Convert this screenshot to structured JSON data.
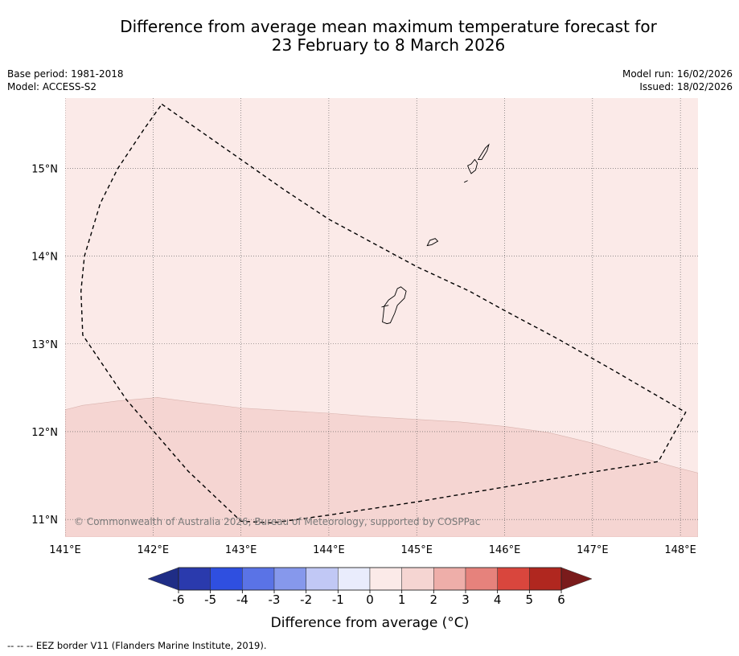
{
  "header": {
    "title_line1": "Difference from average mean maximum temperature forecast for",
    "title_line2": "23 February to 8 March 2026",
    "base_period": "Base period: 1981-2018",
    "model": "Model: ACCESS-S2",
    "model_run": "Model run: 16/02/2026",
    "issued": "Issued: 18/02/2026"
  },
  "map": {
    "lon_range": [
      141.0,
      148.2
    ],
    "lat_range": [
      10.8,
      15.8
    ],
    "lon_ticks": [
      141,
      142,
      143,
      144,
      145,
      146,
      147,
      148
    ],
    "lon_labels": [
      "141°E",
      "142°E",
      "143°E",
      "144°E",
      "145°E",
      "146°E",
      "147°E",
      "148°E"
    ],
    "lat_ticks": [
      11,
      12,
      13,
      14,
      15
    ],
    "lat_labels": [
      "11°N",
      "12°N",
      "13°N",
      "14°N",
      "15°N"
    ],
    "background_category": "0 to 1",
    "background_color": "#fbeae8",
    "warm_region_category": "1 to 2",
    "warm_region_color": "#f5d5d2",
    "warm_region_boundary": [
      [
        141.0,
        12.25
      ],
      [
        141.2,
        12.3
      ],
      [
        141.6,
        12.35
      ],
      [
        142.05,
        12.39
      ],
      [
        142.5,
        12.33
      ],
      [
        143.0,
        12.27
      ],
      [
        143.5,
        12.24
      ],
      [
        144.0,
        12.21
      ],
      [
        144.5,
        12.17
      ],
      [
        145.0,
        12.14
      ],
      [
        145.5,
        12.11
      ],
      [
        146.0,
        12.06
      ],
      [
        146.5,
        11.99
      ],
      [
        147.0,
        11.87
      ],
      [
        147.5,
        11.72
      ],
      [
        148.0,
        11.58
      ],
      [
        148.2,
        11.53
      ]
    ],
    "eez_border": [
      [
        142.1,
        15.73
      ],
      [
        142.5,
        15.45
      ],
      [
        143.0,
        15.1
      ],
      [
        143.5,
        14.75
      ],
      [
        144.0,
        14.42
      ],
      [
        144.5,
        14.15
      ],
      [
        145.0,
        13.88
      ],
      [
        145.6,
        13.6
      ],
      [
        146.0,
        13.38
      ],
      [
        146.6,
        13.06
      ],
      [
        147.2,
        12.72
      ],
      [
        147.7,
        12.43
      ],
      [
        148.06,
        12.22
      ],
      [
        147.9,
        11.93
      ],
      [
        147.75,
        11.66
      ],
      [
        147.0,
        11.54
      ],
      [
        146.0,
        11.37
      ],
      [
        145.0,
        11.2
      ],
      [
        144.0,
        11.05
      ],
      [
        143.35,
        10.96
      ],
      [
        143.0,
        10.98
      ],
      [
        142.4,
        11.55
      ],
      [
        141.7,
        12.36
      ],
      [
        141.2,
        13.1
      ],
      [
        141.18,
        13.6
      ],
      [
        141.22,
        14.0
      ],
      [
        141.4,
        14.6
      ],
      [
        141.6,
        15.0
      ],
      [
        141.9,
        15.45
      ],
      [
        142.1,
        15.73
      ]
    ],
    "islands": [
      [
        [
          144.63,
          13.43
        ],
        [
          144.68,
          13.5
        ],
        [
          144.75,
          13.55
        ],
        [
          144.78,
          13.63
        ],
        [
          144.82,
          13.65
        ],
        [
          144.88,
          13.6
        ],
        [
          144.86,
          13.52
        ],
        [
          144.78,
          13.44
        ],
        [
          144.75,
          13.35
        ],
        [
          144.7,
          13.24
        ],
        [
          144.66,
          13.23
        ],
        [
          144.61,
          13.25
        ],
        [
          144.62,
          13.33
        ],
        [
          144.63,
          13.43
        ]
      ],
      [
        [
          145.12,
          14.12
        ],
        [
          145.17,
          14.13
        ],
        [
          145.24,
          14.17
        ],
        [
          145.21,
          14.2
        ],
        [
          145.15,
          14.18
        ],
        [
          145.12,
          14.12
        ]
      ],
      [
        [
          145.58,
          15.03
        ],
        [
          145.62,
          15.05
        ],
        [
          145.66,
          15.1
        ],
        [
          145.69,
          15.06
        ],
        [
          145.67,
          14.98
        ],
        [
          145.62,
          14.94
        ],
        [
          145.6,
          14.98
        ],
        [
          145.58,
          15.03
        ]
      ],
      [
        [
          145.7,
          15.1
        ],
        [
          145.73,
          15.15
        ],
        [
          145.78,
          15.23
        ],
        [
          145.82,
          15.27
        ],
        [
          145.8,
          15.2
        ],
        [
          145.74,
          15.1
        ],
        [
          145.7,
          15.1
        ]
      ]
    ],
    "islet_segments": [
      [
        [
          144.6,
          13.42
        ],
        [
          144.68,
          13.44
        ]
      ],
      [
        [
          145.54,
          14.84
        ],
        [
          145.58,
          14.86
        ]
      ]
    ],
    "copyright": "© Commonwealth of Australia 2026, Bureau of Meteorology, supported by COSPPac"
  },
  "colorbar": {
    "title": "Difference from average (°C)",
    "tick_labels": [
      "-6",
      "-5",
      "-4",
      "-3",
      "-2",
      "-1",
      "0",
      "1",
      "2",
      "3",
      "4",
      "5",
      "6"
    ],
    "under_color": "#1f2d86",
    "over_color": "#7a1b1b",
    "colors": [
      "#2a3aad",
      "#2f4fe0",
      "#5a73e6",
      "#8698ec",
      "#c1c8f5",
      "#e9ecfc",
      "#fbeae8",
      "#f5d5d2",
      "#eeaea9",
      "#e6827c",
      "#d9463d",
      "#b0271f"
    ]
  },
  "footnote": "--  --  -- EEZ border V11 (Flanders Marine Institute, 2019)."
}
